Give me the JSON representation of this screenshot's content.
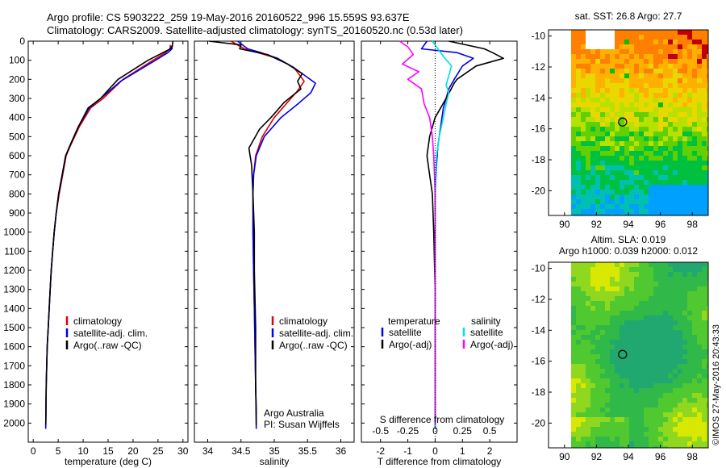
{
  "header": {
    "line1": "Argo profile: CS 5903222_259 19-May-2016 20160522_996 15.559S 93.637E",
    "line2": "Climatology: CARS2009. Satellite-adjusted climatology: synTS_20160520.nc (0.53d later)"
  },
  "credit": "©IMOS 27-May-2016 20:43:33",
  "colors": {
    "climatology": "#e00000",
    "satellite": "#0000ee",
    "argo": "#000000",
    "sat_salinity": "#00e0e0",
    "argo_salinity": "#ff00ff"
  },
  "chart_data": [
    {
      "type": "line",
      "id": "temperature",
      "xlabel": "temperature (deg C)",
      "ylabel": "",
      "xlim": [
        -1,
        31
      ],
      "ylim": [
        2100,
        0
      ],
      "xticks": [
        0,
        5,
        10,
        15,
        20,
        25,
        30
      ],
      "yticks": [
        0,
        100,
        200,
        300,
        400,
        500,
        600,
        700,
        800,
        900,
        1000,
        1100,
        1200,
        1300,
        1400,
        1500,
        1600,
        1700,
        1800,
        1900,
        2000
      ],
      "legend": [
        "climatology",
        "satellite-adj. clim.",
        "Argo(..raw -QC)"
      ],
      "legend_position": "lower-center",
      "series": [
        {
          "name": "climatology",
          "color": "#e00000",
          "x": [
            27.5,
            27.4,
            26.5,
            24.0,
            18.0,
            14.0,
            11.5,
            9.2,
            7.4,
            6.6,
            5.9,
            5.2,
            4.6,
            4.2,
            3.9,
            3.6,
            3.4,
            3.2,
            3.0,
            2.8,
            2.6,
            2.5
          ],
          "y": [
            20,
            40,
            60,
            100,
            200,
            300,
            350,
            450,
            550,
            600,
            700,
            800,
            900,
            1000,
            1100,
            1200,
            1300,
            1400,
            1500,
            1600,
            1800,
            2030
          ]
        },
        {
          "name": "satellite-adj. clim.",
          "color": "#0000ee",
          "x": [
            27.9,
            27.8,
            27.0,
            24.5,
            17.5,
            13.5,
            11.2,
            9.0,
            7.3,
            6.5,
            5.8,
            5.1,
            4.6,
            4.2,
            3.9,
            3.6,
            3.4,
            3.2,
            3.0,
            2.8,
            2.6,
            2.5
          ],
          "y": [
            20,
            40,
            60,
            100,
            210,
            300,
            350,
            450,
            550,
            600,
            700,
            800,
            900,
            1000,
            1100,
            1200,
            1300,
            1400,
            1500,
            1600,
            1800,
            2030
          ]
        },
        {
          "name": "Argo(..raw -QC)",
          "color": "#000000",
          "x": [
            28.0,
            27.9,
            27.5,
            26.0,
            23.0,
            17.0,
            13.5,
            11.0,
            9.0,
            7.3,
            6.5,
            5.8,
            5.1,
            4.6,
            4.2,
            3.9,
            3.6,
            3.4,
            3.2,
            3.0,
            2.8,
            2.6,
            2.5
          ],
          "y": [
            0,
            20,
            40,
            60,
            100,
            200,
            300,
            350,
            450,
            550,
            600,
            700,
            800,
            900,
            1000,
            1100,
            1200,
            1300,
            1400,
            1500,
            1600,
            1800,
            2010
          ]
        }
      ]
    },
    {
      "type": "line",
      "id": "salinity",
      "xlabel": "salinity",
      "xlim": [
        33.8,
        36.2
      ],
      "ylim": [
        2100,
        0
      ],
      "xticks": [
        34,
        34.5,
        35,
        35.5,
        36
      ],
      "legend": [
        "climatology",
        "satellite-adj. clim.",
        "Argo(..raw -QC)"
      ],
      "legend_position": "lower-right",
      "annotations": [
        "Argo Australia",
        "PI: Susan Wijffels"
      ],
      "series": [
        {
          "name": "climatology",
          "color": "#e00000",
          "x": [
            34.35,
            34.55,
            34.75,
            35.05,
            35.3,
            35.45,
            35.35,
            35.2,
            35.0,
            34.82,
            34.72,
            34.69,
            34.68,
            34.68,
            34.69,
            34.7,
            34.71,
            34.72,
            34.73,
            34.73
          ],
          "y": [
            0,
            40,
            60,
            90,
            140,
            210,
            260,
            320,
            400,
            500,
            600,
            700,
            800,
            1000,
            1200,
            1400,
            1600,
            1800,
            1950,
            2030
          ]
        },
        {
          "name": "satellite-adj. clim.",
          "color": "#0000ee",
          "x": [
            34.45,
            34.6,
            34.8,
            35.05,
            35.3,
            35.62,
            35.55,
            35.35,
            35.1,
            34.85,
            34.73,
            34.69,
            34.68,
            34.68,
            34.69,
            34.7,
            34.71,
            34.72,
            34.73,
            34.73
          ],
          "y": [
            0,
            40,
            60,
            90,
            140,
            220,
            270,
            330,
            400,
            500,
            600,
            700,
            800,
            1000,
            1200,
            1400,
            1600,
            1800,
            1950,
            2030
          ]
        },
        {
          "name": "Argo(..raw -QC)",
          "color": "#000000",
          "x": [
            34.02,
            34.5,
            34.48,
            34.9,
            35.2,
            35.42,
            35.35,
            35.4,
            35.15,
            34.95,
            34.78,
            34.62,
            34.66,
            34.68,
            34.7,
            34.7,
            34.72,
            34.72,
            34.73
          ],
          "y": [
            0,
            20,
            40,
            70,
            120,
            170,
            210,
            250,
            320,
            400,
            460,
            560,
            650,
            800,
            1000,
            1200,
            1500,
            1800,
            2010
          ]
        }
      ]
    },
    {
      "type": "line",
      "id": "differences",
      "xlabel": "T difference from climatology",
      "xlabel_top": "S difference from climatology",
      "xlim": [
        -2.7,
        3.0
      ],
      "ylim": [
        2100,
        0
      ],
      "xticks_bottom": [
        -2,
        -1,
        0,
        1,
        2
      ],
      "xticks_top_labels": [
        "-0.5",
        "-0.25",
        "0",
        "0.25",
        "0.5"
      ],
      "xticks_top_S": [
        -0.5,
        -0.25,
        0,
        0.25,
        0.5
      ],
      "legend": [
        "temperature",
        "satellite",
        "Argo(-adj)",
        "salinity",
        "satellite",
        "Argo(-adj)"
      ],
      "legend_position": "lower-center",
      "series": [
        {
          "name": "satellite",
          "color": "#0000ee",
          "x": [
            -0.3,
            -0.5,
            0.8,
            1.4,
            1.0,
            0.7,
            0.5,
            0.3,
            0.2,
            0.1,
            0.05,
            0.0,
            0.0,
            0.0,
            0.0,
            0.0,
            0.0
          ],
          "y": [
            0,
            40,
            60,
            90,
            130,
            200,
            250,
            350,
            450,
            550,
            650,
            800,
            1000,
            1200,
            1500,
            1800,
            2030
          ]
        },
        {
          "name": "Argo(-adj)",
          "color": "#000000",
          "x": [
            0.5,
            1.8,
            2.1,
            2.5,
            1.5,
            0.8,
            0.7,
            0.4,
            0.0,
            -0.2,
            -0.3,
            -0.2,
            -0.1,
            -0.05,
            0.0,
            0.0,
            0.0,
            0.0
          ],
          "y": [
            0,
            40,
            60,
            90,
            130,
            200,
            220,
            300,
            400,
            500,
            600,
            700,
            800,
            1000,
            1300,
            1600,
            1800,
            2010
          ]
        },
        {
          "name": "satellite",
          "color": "#00e0e0",
          "x": [
            -0.1,
            0.1,
            0.3,
            0.6,
            0.5,
            0.4,
            0.5,
            0.4,
            0.3,
            0.15,
            0.05,
            0.02,
            0.0,
            0.0,
            0.0
          ],
          "y": [
            0,
            40,
            80,
            130,
            180,
            230,
            270,
            330,
            400,
            500,
            600,
            700,
            900,
            1300,
            2030
          ]
        },
        {
          "name": "Argo(-adj)",
          "color": "#ff00ff",
          "x": [
            -1.3,
            -1.0,
            -0.8,
            -1.2,
            -0.6,
            -1.0,
            -0.5,
            -0.4,
            -0.2,
            -0.1,
            -0.05,
            0.0,
            0.0,
            0.0
          ],
          "y": [
            0,
            30,
            70,
            120,
            160,
            200,
            250,
            330,
            400,
            500,
            600,
            800,
            1200,
            2010
          ]
        }
      ]
    },
    {
      "type": "heatmap",
      "id": "sst-map",
      "title": "sat. SST: 26.8  Argo: 27.7",
      "xlim": [
        89,
        99
      ],
      "ylim": [
        -21.6,
        -9.6
      ],
      "xticks": [
        90,
        92,
        94,
        96,
        98
      ],
      "yticks": [
        -10,
        -12,
        -14,
        -16,
        -18,
        -20
      ],
      "float_position": [
        93.637,
        -15.559
      ]
    },
    {
      "type": "heatmap",
      "id": "sla-map",
      "title_line1": "Altim. SLA: 0.019",
      "title_line2": "Argo h1000: 0.039 h2000: 0.012",
      "xlim": [
        89,
        99
      ],
      "ylim": [
        -21.6,
        -9.6
      ],
      "xticks": [
        90,
        92,
        94,
        96,
        98
      ],
      "yticks": [
        -10,
        -12,
        -14,
        -16,
        -18,
        -20
      ],
      "float_position": [
        93.637,
        -15.559
      ]
    }
  ]
}
